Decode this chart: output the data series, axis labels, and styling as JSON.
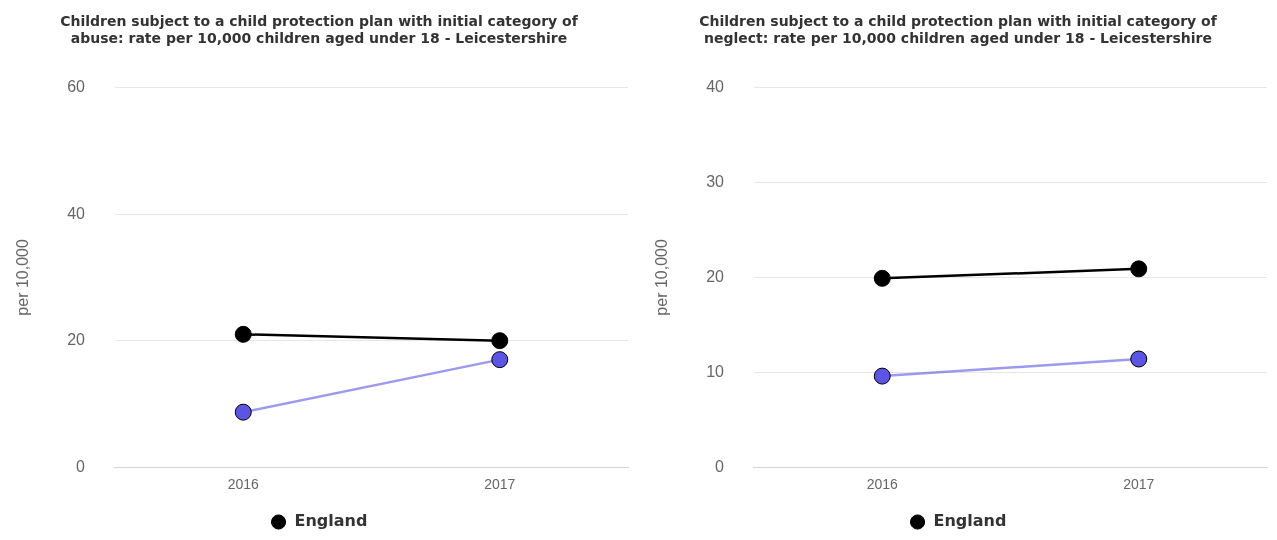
{
  "chart_data": [
    {
      "type": "line",
      "title": "Children subject to a child protection plan with initial category of abuse: rate per 10,000 children aged under 18 - Leicestershire",
      "ylabel": "per 10,000",
      "categories": [
        "2016",
        "2017"
      ],
      "series": [
        {
          "name": "England",
          "color": "#000000",
          "values": [
            21,
            20
          ]
        },
        {
          "color": "#5b55e6",
          "values": [
            8.7,
            17
          ]
        }
      ],
      "ylim": [
        0,
        60
      ],
      "yticks": [
        0,
        20,
        40,
        60
      ],
      "grid": "y",
      "legend": "bottom",
      "marker": "circle",
      "line_style": "solid"
    },
    {
      "type": "line",
      "title": "Children subject to a child protection plan with initial category of neglect: rate per 10,000 children aged under 18 - Leicestershire",
      "ylabel": "per 10,000",
      "categories": [
        "2016",
        "2017"
      ],
      "series": [
        {
          "name": "England",
          "color": "#000000",
          "values": [
            19.9,
            20.9
          ]
        },
        {
          "color": "#5b55e6",
          "values": [
            9.6,
            11.4
          ]
        }
      ],
      "ylim": [
        0,
        40
      ],
      "yticks": [
        0,
        10,
        20,
        30,
        40
      ],
      "grid": "y",
      "legend": "bottom",
      "marker": "circle",
      "line_style": "solid"
    }
  ]
}
